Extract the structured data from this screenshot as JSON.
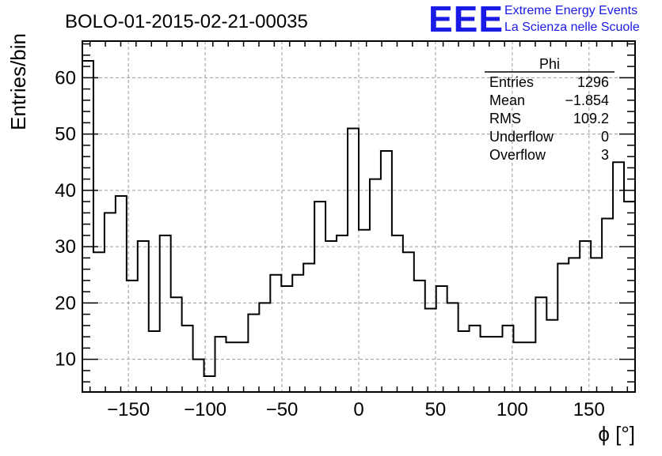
{
  "chart_data": {
    "type": "histogram",
    "title": "BOLO-01-2015-02-21-00035",
    "xlabel": "ϕ [°]",
    "ylabel": "Entries/bin",
    "xlim": [
      -180,
      180
    ],
    "ylim": [
      4.2,
      66.5
    ],
    "bin_width": 7.2,
    "x_ticks": [
      -150,
      -100,
      -50,
      0,
      50,
      100,
      150
    ],
    "x_tick_labels": [
      "−150",
      "−100",
      "−50",
      "0",
      "50",
      "100",
      "150"
    ],
    "y_ticks": [
      10,
      20,
      30,
      40,
      50,
      60
    ],
    "y_tick_labels": [
      "10",
      "20",
      "30",
      "40",
      "50",
      "60"
    ],
    "grid": true,
    "values": [
      63,
      29,
      36,
      39,
      24,
      31,
      15,
      32,
      21,
      16,
      10,
      7,
      14,
      13,
      13,
      18,
      20,
      25,
      23,
      25,
      27,
      38,
      31,
      32,
      51,
      33,
      42,
      47,
      32,
      29,
      24,
      19,
      23,
      20,
      15,
      16,
      14,
      14,
      16,
      13,
      13,
      21,
      17,
      27,
      28,
      31,
      28,
      35,
      45,
      38
    ],
    "stats_box": {
      "title": "Phi",
      "rows": [
        {
          "label": "Entries",
          "value": "1296"
        },
        {
          "label": "Mean",
          "value": "−1.854"
        },
        {
          "label": "RMS",
          "value": "109.2"
        },
        {
          "label": "Underflow",
          "value": "0"
        },
        {
          "label": "Overflow",
          "value": "3"
        }
      ]
    }
  },
  "logo": {
    "mark": "EEE",
    "line1": "Extreme Energy Events",
    "line2": "La Scienza nelle Scuole",
    "color": "#1a1ae6"
  }
}
